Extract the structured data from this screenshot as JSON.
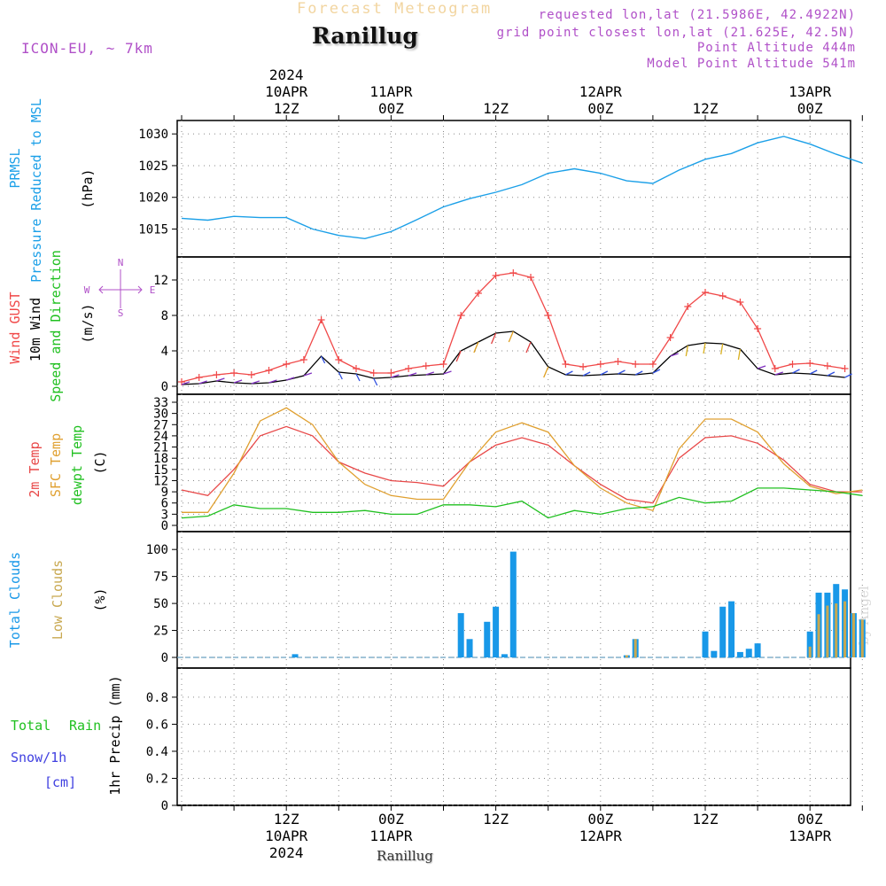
{
  "header": {
    "title": "Forecast Meteogram",
    "location": "Ranillug",
    "model": "ICON-EU, ~ 7km",
    "requested": "requested lon,lat (21.5986E, 42.4922N)",
    "gridpoint": "grid point closest lon,lat (21.625E, 42.5N)",
    "point_altitude": "Point Altitude 444m",
    "model_altitude": "Model Point Altitude 541m",
    "credit": "by Angel",
    "footer_location": "Ranillug"
  },
  "colors": {
    "pressure": "#1ca0e8",
    "gust": "#f04848",
    "wind": "#000000",
    "temp": "#e84848",
    "sfc_temp": "#e0a030",
    "dewpoint": "#20c020",
    "total_clouds": "#1898e8",
    "low_clouds": "#c8a850",
    "rain": "#20c020",
    "snow": "#4040e0",
    "compass": "#b050c8"
  },
  "chart_data": [
    {
      "type": "line",
      "panel": "pressure",
      "x": [
        0,
        3,
        6,
        9,
        12,
        15,
        18,
        21,
        24,
        27,
        30,
        33,
        36,
        39,
        42,
        45,
        48,
        51,
        54,
        57,
        60,
        63,
        66,
        69,
        72,
        75,
        78
      ],
      "labels": [
        "PRMSL",
        "Pressure Reduced to MSL",
        "(hPa)"
      ],
      "yticks": [
        1015,
        1020,
        1025,
        1030
      ],
      "ylim": [
        1012,
        1031
      ],
      "series": [
        {
          "name": "PRMSL",
          "values": [
            1016.7,
            1016.4,
            1017.0,
            1016.8,
            1016.8,
            1015.0,
            1014.0,
            1013.5,
            1014.6,
            1016.5,
            1018.5,
            1019.8,
            1020.8,
            1022.0,
            1023.8,
            1024.5,
            1023.8,
            1022.6,
            1022.2,
            1024.3,
            1026.0,
            1026.9,
            1028.6,
            1029.6,
            1028.4,
            1026.8,
            1025.4
          ]
        }
      ],
      "x_top_ticks": [
        {
          "x": 12,
          "lines": [
            "2024",
            "10APR",
            "12Z"
          ]
        },
        {
          "x": 24,
          "lines": [
            "11APR",
            "00Z"
          ]
        },
        {
          "x": 36,
          "lines": [
            "12Z"
          ]
        },
        {
          "x": 48,
          "lines": [
            "12APR",
            "00Z"
          ]
        },
        {
          "x": 60,
          "lines": [
            "12Z"
          ]
        },
        {
          "x": 72,
          "lines": [
            "13APR",
            "00Z"
          ]
        }
      ]
    },
    {
      "type": "line",
      "panel": "wind",
      "labels": [
        "Wind GUST",
        "10m Wind",
        "Speed and Direction",
        "(m/s)"
      ],
      "compass": [
        "N",
        "W",
        "E",
        "S"
      ],
      "yticks": [
        0,
        4,
        8,
        12
      ],
      "ylim": [
        0,
        14
      ],
      "series": [
        {
          "name": "Wind GUST",
          "x": [
            0,
            2,
            4,
            6,
            8,
            10,
            12,
            14,
            16,
            18,
            20,
            22,
            24,
            26,
            28,
            30,
            32,
            34,
            36,
            38,
            40,
            42,
            44,
            46,
            48,
            50,
            52,
            54,
            56,
            58,
            60,
            62,
            64,
            66,
            68,
            70,
            72,
            74,
            76
          ],
          "values": [
            0.5,
            1.0,
            1.3,
            1.5,
            1.3,
            1.8,
            2.5,
            3.0,
            7.5,
            3.0,
            2.0,
            1.5,
            1.5,
            2.0,
            2.3,
            2.5,
            8.0,
            10.5,
            12.5,
            12.8,
            12.3,
            8.0,
            2.5,
            2.2,
            2.5,
            2.8,
            2.5,
            2.5,
            5.5,
            9.0,
            10.6,
            10.2,
            9.5,
            6.5,
            2.0,
            2.5,
            2.6,
            2.3,
            2.0
          ]
        },
        {
          "name": "10m Wind",
          "x": [
            0,
            2,
            4,
            6,
            8,
            10,
            12,
            14,
            16,
            18,
            20,
            22,
            24,
            26,
            28,
            30,
            32,
            34,
            36,
            38,
            40,
            42,
            44,
            46,
            48,
            50,
            52,
            54,
            56,
            58,
            60,
            62,
            64,
            66,
            68,
            70,
            72,
            74,
            76
          ],
          "values": [
            0.2,
            0.3,
            0.6,
            0.4,
            0.3,
            0.4,
            0.7,
            1.2,
            3.4,
            1.6,
            1.4,
            0.9,
            1.0,
            1.2,
            1.3,
            1.4,
            4.0,
            5.0,
            6.0,
            6.2,
            5.0,
            2.2,
            1.3,
            1.2,
            1.3,
            1.4,
            1.3,
            1.5,
            3.4,
            4.6,
            4.9,
            4.8,
            4.2,
            2.0,
            1.3,
            1.5,
            1.4,
            1.2,
            1.0
          ]
        }
      ]
    },
    {
      "type": "line",
      "panel": "temperature",
      "labels": [
        "2m Temp",
        "SFC Temp",
        "dewpt Temp",
        "(C)"
      ],
      "yticks": [
        0,
        3,
        6,
        9,
        12,
        15,
        18,
        21,
        24,
        27,
        30,
        33
      ],
      "ylim": [
        0,
        33
      ],
      "series": [
        {
          "name": "2m Temp",
          "x": [
            0,
            3,
            6,
            9,
            12,
            15,
            18,
            21,
            24,
            27,
            30,
            33,
            36,
            39,
            42,
            45,
            48,
            51,
            54,
            57,
            60,
            63,
            66,
            69,
            72,
            75,
            78
          ],
          "values": [
            9.5,
            8.0,
            15.0,
            24.0,
            26.5,
            24.0,
            17.0,
            14.0,
            12.0,
            11.5,
            10.5,
            17.0,
            21.5,
            23.5,
            21.5,
            16.0,
            11.0,
            7.0,
            6.0,
            18.0,
            23.5,
            24.0,
            22.0,
            17.5,
            11.0,
            9.0,
            9.0
          ]
        },
        {
          "name": "SFC Temp",
          "x": [
            0,
            3,
            6,
            9,
            12,
            15,
            18,
            21,
            24,
            27,
            30,
            33,
            36,
            39,
            42,
            45,
            48,
            51,
            54,
            57,
            60,
            63,
            66,
            69,
            72,
            75,
            78
          ],
          "values": [
            3.5,
            3.5,
            14.0,
            28.0,
            31.5,
            27.0,
            17.0,
            11.0,
            8.0,
            7.0,
            7.0,
            17.0,
            25.0,
            27.5,
            25.0,
            16.0,
            10.0,
            6.0,
            4.0,
            20.5,
            28.5,
            28.5,
            25.0,
            16.5,
            10.5,
            8.5,
            9.5
          ]
        },
        {
          "name": "dewpt Temp",
          "x": [
            0,
            3,
            6,
            9,
            12,
            15,
            18,
            21,
            24,
            27,
            30,
            33,
            36,
            39,
            42,
            45,
            48,
            51,
            54,
            57,
            60,
            63,
            66,
            69,
            72,
            75,
            78
          ],
          "values": [
            2.0,
            2.5,
            5.5,
            4.5,
            4.5,
            3.5,
            3.5,
            4.0,
            3.0,
            3.0,
            5.5,
            5.5,
            5.0,
            6.5,
            2.0,
            4.0,
            3.0,
            4.5,
            5.0,
            7.5,
            6.0,
            6.5,
            10.0,
            10.0,
            9.5,
            9.0,
            8.0
          ]
        }
      ]
    },
    {
      "type": "bar",
      "panel": "clouds",
      "labels": [
        "Total Clouds",
        "Low Clouds",
        "(%)"
      ],
      "yticks": [
        0,
        25,
        50,
        75,
        100
      ],
      "ylim": [
        0,
        110
      ],
      "series": [
        {
          "name": "Total Clouds",
          "x": [
            13,
            32,
            33,
            35,
            36,
            37,
            38,
            51,
            52,
            60,
            61,
            62,
            63,
            64,
            65,
            66,
            72,
            73,
            74,
            75,
            76,
            77,
            78
          ],
          "values": [
            3,
            41,
            17,
            33,
            47,
            3,
            98,
            2,
            17,
            24,
            6,
            47,
            52,
            5,
            8,
            13,
            24,
            60,
            60,
            68,
            63,
            41,
            35
          ]
        },
        {
          "name": "Low Clouds",
          "x": [
            51,
            52,
            72,
            73,
            74,
            75,
            76,
            77,
            78
          ],
          "values": [
            2,
            17,
            10,
            40,
            48,
            50,
            52,
            41,
            35
          ]
        }
      ]
    },
    {
      "type": "bar",
      "panel": "precipitation",
      "labels": [
        "Total",
        "Rain",
        "Snow/1h",
        "[cm]",
        "1hr Precip (mm)"
      ],
      "yticks": [
        0,
        0.2,
        0.4,
        0.6,
        0.8
      ],
      "ylim": [
        0,
        0.95
      ],
      "series": [
        {
          "name": "Rain",
          "x": [],
          "values": []
        }
      ],
      "x_bottom_ticks": [
        {
          "x": 12,
          "lines": [
            "12Z",
            "10APR",
            "2024"
          ]
        },
        {
          "x": 24,
          "lines": [
            "00Z",
            "11APR"
          ]
        },
        {
          "x": 36,
          "lines": [
            "12Z"
          ]
        },
        {
          "x": 48,
          "lines": [
            "00Z",
            "12APR"
          ]
        },
        {
          "x": 60,
          "lines": [
            "12Z"
          ]
        },
        {
          "x": 72,
          "lines": [
            "00Z",
            "13APR"
          ]
        }
      ]
    }
  ]
}
